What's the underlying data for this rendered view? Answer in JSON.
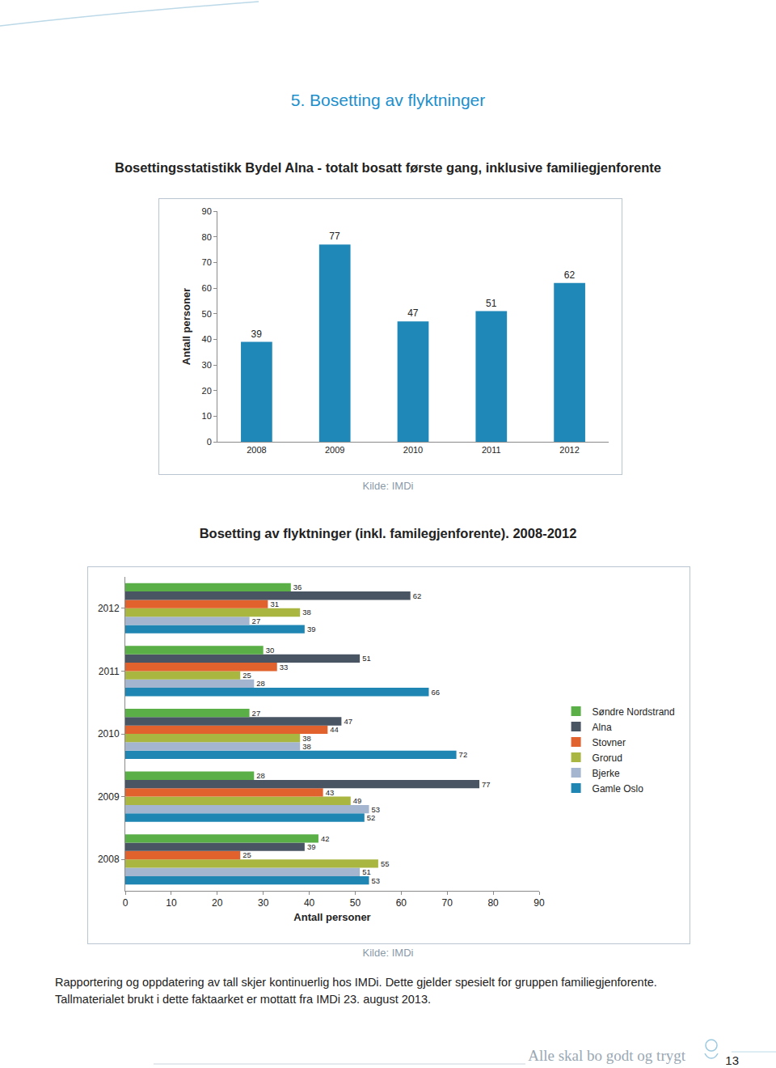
{
  "heading": "5. Bosetting av flyktninger",
  "chart_data": [
    {
      "type": "bar",
      "title": "Bosettingsstatistikk Bydel Alna - totalt bosatt første gang, inklusive familiegjenforente",
      "source": "Kilde: IMDi",
      "categories": [
        "2008",
        "2009",
        "2010",
        "2011",
        "2012"
      ],
      "values": [
        39,
        77,
        47,
        51,
        62
      ],
      "color": "#1f88b8",
      "ylabel": "Antall personer",
      "ylim": [
        0,
        90
      ],
      "yticks": [
        0,
        10,
        20,
        30,
        40,
        50,
        60,
        70,
        80,
        90
      ],
      "grid": false,
      "data_labels": true
    },
    {
      "type": "bar",
      "orientation": "horizontal",
      "title": "Bosetting av flyktninger (inkl. familegjenforente). 2008-2012",
      "source": "Kilde: IMDi",
      "categories": [
        "2008",
        "2009",
        "2010",
        "2011",
        "2012"
      ],
      "series": [
        {
          "name": "Søndre Nordstrand",
          "color": "#5aaf47",
          "values": [
            42,
            28,
            27,
            30,
            36
          ]
        },
        {
          "name": "Alna",
          "color": "#4a5563",
          "values": [
            39,
            77,
            47,
            51,
            62
          ]
        },
        {
          "name": "Stovner",
          "color": "#e2622e",
          "values": [
            25,
            43,
            44,
            33,
            31
          ]
        },
        {
          "name": "Grorud",
          "color": "#a9b640",
          "values": [
            55,
            49,
            38,
            25,
            38
          ]
        },
        {
          "name": "Bjerke",
          "color": "#a3b5cf",
          "values": [
            51,
            53,
            38,
            28,
            27
          ]
        },
        {
          "name": "Gamle Oslo",
          "color": "#1f86b4",
          "values": [
            53,
            52,
            72,
            66,
            39
          ]
        }
      ],
      "xlabel": "Antall personer",
      "xlim": [
        0,
        90
      ],
      "xticks": [
        0,
        10,
        20,
        30,
        40,
        50,
        60,
        70,
        80,
        90
      ],
      "grid": false,
      "data_labels": true,
      "legend": "right"
    }
  ],
  "notes": [
    "Rapportering og oppdatering av tall skjer kontinuerlig hos IMDi. Dette gjelder spesielt for gruppen familiegjenforente.",
    "Tallmaterialet brukt i dette faktaarket er mottatt fra IMDi 23. august 2013."
  ],
  "footer": {
    "slogan": "Alle skal bo godt og trygt",
    "page_number": 13
  }
}
